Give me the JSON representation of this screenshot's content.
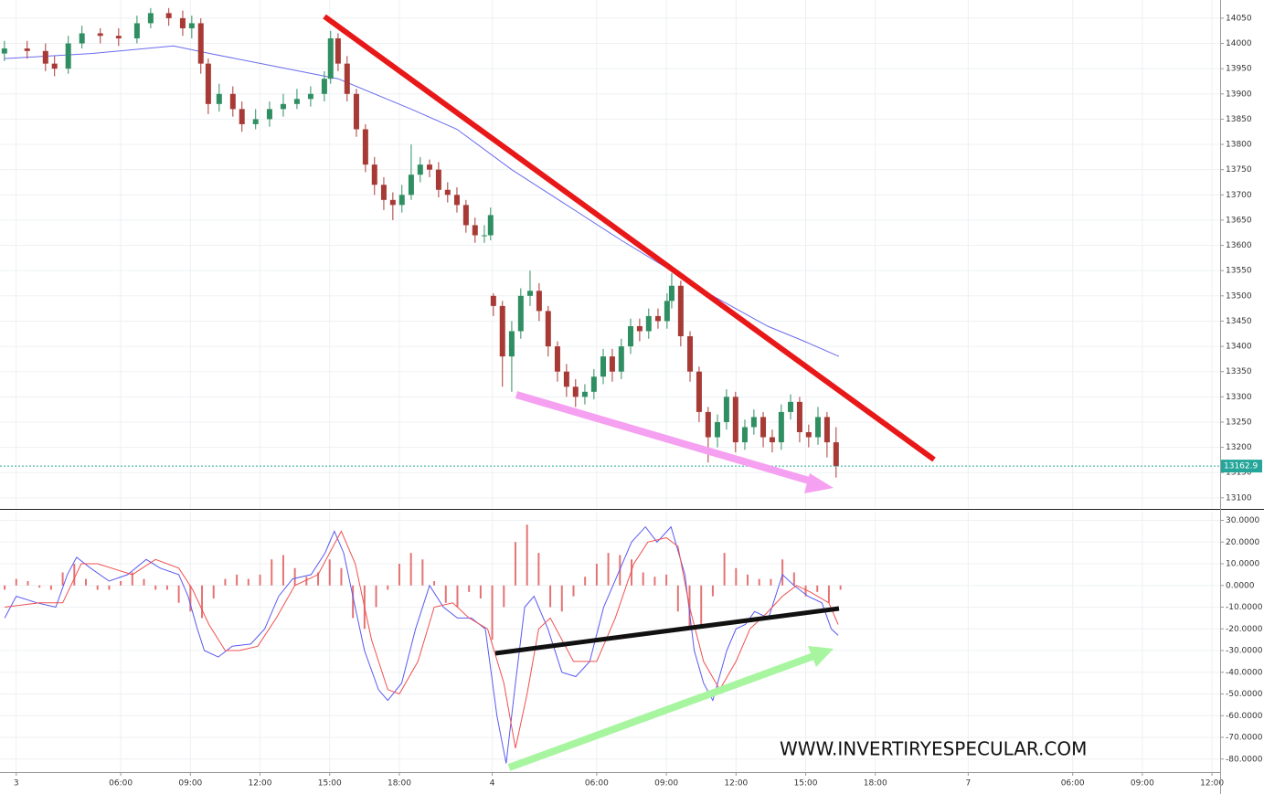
{
  "chart_data": [
    {
      "type": "candlestick",
      "x": [
        -0.51,
        0.47,
        1.26,
        1.65,
        2.24,
        2.83,
        3.62,
        4.41,
        5.2,
        5.79,
        6.57,
        7.17,
        7.56,
        7.95,
        8.27,
        8.74,
        9.33,
        9.72,
        10.31,
        10.91,
        11.5,
        12.09,
        12.68,
        13.27,
        13.54,
        13.86,
        14.25,
        14.65,
        15.04,
        15.43,
        15.83,
        16.22,
        16.61,
        17.01,
        17.4,
        17.8,
        18.19,
        18.58,
        18.98,
        19.37,
        19.76,
        20.16,
        20.43,
        20.55,
        20.94,
        21.34,
        21.73,
        22.13,
        22.52,
        22.91,
        23.31,
        23.7,
        24.09,
        24.49,
        24.88,
        25.28,
        25.67,
        26.06,
        26.46,
        26.85,
        27.24,
        27.64,
        28.03,
        28.23,
        28.62,
        29.02,
        29.41,
        29.8,
        30.2,
        30.59,
        30.98,
        31.38,
        31.77,
        32.17,
        32.56,
        32.95,
        33.35,
        33.74,
        34.13,
        34.53,
        34.92,
        35.31
      ],
      "ohlc": [
        [
          13980,
          14005,
          13965,
          13990
        ],
        [
          13990,
          14005,
          13970,
          13985
        ],
        [
          13985,
          14000,
          13945,
          13960
        ],
        [
          13960,
          13975,
          13935,
          13950
        ],
        [
          13950,
          14015,
          13940,
          14000
        ],
        [
          14000,
          14035,
          13990,
          14020
        ],
        [
          14020,
          14030,
          14000,
          14015
        ],
        [
          14015,
          14030,
          13995,
          14010
        ],
        [
          14010,
          14055,
          14000,
          14040
        ],
        [
          14040,
          14070,
          14030,
          14060
        ],
        [
          14060,
          14070,
          14035,
          14050
        ],
        [
          14050,
          14065,
          14015,
          14030
        ],
        [
          14030,
          14055,
          14010,
          14040
        ],
        [
          14040,
          14050,
          13940,
          13960
        ],
        [
          13960,
          13970,
          13860,
          13880
        ],
        [
          13880,
          13920,
          13865,
          13900
        ],
        [
          13900,
          13915,
          13855,
          13870
        ],
        [
          13870,
          13885,
          13825,
          13840
        ],
        [
          13840,
          13870,
          13830,
          13850
        ],
        [
          13850,
          13885,
          13835,
          13870
        ],
        [
          13870,
          13900,
          13855,
          13880
        ],
        [
          13880,
          13910,
          13870,
          13890
        ],
        [
          13890,
          13915,
          13875,
          13900
        ],
        [
          13900,
          13945,
          13885,
          13930
        ],
        [
          13930,
          14025,
          13920,
          14010
        ],
        [
          14010,
          14020,
          13945,
          13960
        ],
        [
          13960,
          13975,
          13885,
          13900
        ],
        [
          13900,
          13910,
          13815,
          13830
        ],
        [
          13830,
          13840,
          13745,
          13760
        ],
        [
          13760,
          13775,
          13700,
          13720
        ],
        [
          13720,
          13735,
          13670,
          13690
        ],
        [
          13690,
          13705,
          13650,
          13680
        ],
        [
          13680,
          13720,
          13665,
          13700
        ],
        [
          13700,
          13800,
          13690,
          13740
        ],
        [
          13740,
          13775,
          13725,
          13760
        ],
        [
          13760,
          13770,
          13735,
          13750
        ],
        [
          13750,
          13765,
          13695,
          13710
        ],
        [
          13710,
          13725,
          13685,
          13700
        ],
        [
          13700,
          13715,
          13665,
          13680
        ],
        [
          13680,
          13690,
          13625,
          13640
        ],
        [
          13640,
          13655,
          13605,
          13620
        ],
        [
          13620,
          13640,
          13605,
          13620
        ],
        [
          13620,
          13675,
          13610,
          13660
        ],
        [
          13500,
          13505,
          13460,
          13480
        ],
        [
          13480,
          13490,
          13320,
          13380
        ],
        [
          13380,
          13450,
          13310,
          13430
        ],
        [
          13430,
          13515,
          13415,
          13500
        ],
        [
          13500,
          13550,
          13480,
          13510
        ],
        [
          13510,
          13525,
          13450,
          13470
        ],
        [
          13470,
          13480,
          13380,
          13400
        ],
        [
          13400,
          13410,
          13330,
          13350
        ],
        [
          13350,
          13365,
          13300,
          13320
        ],
        [
          13320,
          13335,
          13280,
          13300
        ],
        [
          13300,
          13325,
          13285,
          13310
        ],
        [
          13310,
          13355,
          13295,
          13340
        ],
        [
          13340,
          13395,
          13325,
          13380
        ],
        [
          13380,
          13395,
          13330,
          13350
        ],
        [
          13350,
          13415,
          13335,
          13400
        ],
        [
          13400,
          13455,
          13385,
          13440
        ],
        [
          13440,
          13455,
          13410,
          13430
        ],
        [
          13430,
          13475,
          13415,
          13460
        ],
        [
          13460,
          13475,
          13435,
          13450
        ],
        [
          13450,
          13505,
          13435,
          13490
        ],
        [
          13490,
          13545,
          13475,
          13520
        ],
        [
          13520,
          13530,
          13400,
          13420
        ],
        [
          13420,
          13430,
          13330,
          13350
        ],
        [
          13350,
          13360,
          13250,
          13270
        ],
        [
          13270,
          13280,
          13170,
          13220
        ],
        [
          13220,
          13265,
          13200,
          13250
        ],
        [
          13250,
          13315,
          13235,
          13300
        ],
        [
          13300,
          13310,
          13190,
          13210
        ],
        [
          13210,
          13255,
          13195,
          13240
        ],
        [
          13240,
          13275,
          13225,
          13260
        ],
        [
          13260,
          13270,
          13200,
          13220
        ],
        [
          13220,
          13235,
          13190,
          13210
        ],
        [
          13210,
          13285,
          13195,
          13270
        ],
        [
          13270,
          13305,
          13255,
          13290
        ],
        [
          13290,
          13300,
          13210,
          13230
        ],
        [
          13230,
          13245,
          13200,
          13220
        ],
        [
          13220,
          13280,
          13205,
          13260
        ],
        [
          13260,
          13270,
          13180,
          13210
        ],
        [
          13210,
          13240,
          13140,
          13162.9
        ]
      ],
      "up_color": "#2f8f62",
      "down_color": "#a83a36",
      "series": [
        {
          "color": "#6b6bef",
          "x": [
            -0.51,
            3.23,
            6.77,
            8.35,
            11.1,
            13.86,
            17.01,
            18.98,
            21.34,
            23.7,
            26.06,
            28.03,
            30.0,
            32.36,
            33.94,
            35.43
          ],
          "values": [
            13970,
            13980,
            13995,
            13980,
            13955,
            13930,
            13870,
            13830,
            13750,
            13680,
            13610,
            13555,
            13500,
            13440,
            13410,
            13380
          ]
        }
      ],
      "last_price": 13162.9,
      "last_color": "#26a69a",
      "xlim": [
        -0.7,
        51.85
      ],
      "ylim": [
        13078,
        14086
      ],
      "yticks": [
        13100,
        13150,
        13200,
        13250,
        13300,
        13350,
        13400,
        13450,
        13500,
        13550,
        13600,
        13650,
        13700,
        13750,
        13800,
        13850,
        13900,
        13950,
        14000,
        14050
      ],
      "xticks": [
        {
          "value": 0,
          "label": "3"
        },
        {
          "value": 4.5,
          "label": "06:00"
        },
        {
          "value": 7.5,
          "label": "09:00"
        },
        {
          "value": 10.5,
          "label": "12:00"
        },
        {
          "value": 13.5,
          "label": "15:00"
        },
        {
          "value": 16.5,
          "label": "18:00"
        },
        {
          "value": 20.5,
          "label": "4"
        },
        {
          "value": 25,
          "label": "06:00"
        },
        {
          "value": 28,
          "label": "09:00"
        },
        {
          "value": 31,
          "label": "12:00"
        },
        {
          "value": 34,
          "label": "15:00"
        },
        {
          "value": 37,
          "label": "18:00"
        },
        {
          "value": 41,
          "label": "7"
        },
        {
          "value": 45.5,
          "label": "06:00"
        },
        {
          "value": 48.5,
          "label": "09:00"
        },
        {
          "value": 51.5,
          "label": "12:00"
        }
      ],
      "grid": true
    },
    {
      "type": "macd",
      "histogram": {
        "color": "#e57373",
        "x": [
          -0.5,
          0,
          0.5,
          1,
          1.5,
          2,
          2.5,
          3,
          3.5,
          4,
          4.5,
          5,
          5.5,
          6,
          6.5,
          7,
          7.5,
          8,
          8.5,
          9,
          9.5,
          10,
          10.5,
          11,
          11.5,
          12,
          12.5,
          13,
          13.5,
          14,
          14.5,
          15,
          15.5,
          16,
          16.5,
          17,
          17.5,
          18,
          18.5,
          19,
          19.5,
          20,
          20.5,
          21,
          21.5,
          22,
          22.5,
          23,
          23.5,
          24,
          24.5,
          25,
          25.5,
          26,
          26.5,
          27,
          27.5,
          28,
          28.5,
          29,
          29.5,
          30,
          30.5,
          31,
          31.5,
          32,
          32.5,
          33,
          33.5,
          34,
          34.5,
          35,
          35.5
        ],
        "values": [
          -2,
          3,
          2,
          -1,
          -2,
          6,
          10,
          3,
          -2,
          -2,
          2,
          6,
          3,
          -2,
          -2,
          -8,
          -12,
          -15,
          -6,
          3,
          5,
          3,
          5,
          12,
          14,
          8,
          4,
          6,
          12,
          8,
          -15,
          -20,
          -10,
          -2,
          10,
          15,
          12,
          2,
          -8,
          -10,
          -3,
          -6,
          -25,
          -10,
          20,
          28,
          15,
          -10,
          -12,
          -5,
          4,
          10,
          15,
          14,
          12,
          6,
          4,
          5,
          -12,
          -20,
          -18,
          -5,
          15,
          8,
          5,
          3,
          3,
          12,
          6,
          -5,
          -3,
          -8,
          -2
        ]
      },
      "series": [
        {
          "color": "#5a5af0",
          "x": [
            -0.5,
            0,
            0.9,
            1.7,
            2.2,
            2.6,
            3.2,
            4,
            4.8,
            5.6,
            6.2,
            7,
            7.4,
            7.8,
            8.1,
            8.7,
            9.3,
            10.1,
            10.7,
            11.3,
            11.9,
            12.7,
            13.3,
            13.7,
            14.1,
            14.5,
            15,
            15.6,
            16,
            16.6,
            17.2,
            17.8,
            18.4,
            19,
            19.6,
            20.2,
            20.7,
            21.1,
            21.5,
            21.9,
            22.3,
            22.9,
            23.5,
            24.1,
            24.7,
            25.3,
            25.9,
            26.5,
            27.1,
            27.6,
            28.2,
            28.8,
            29.2,
            29.6,
            30,
            30.6,
            31,
            31.4,
            31.8,
            32.4,
            33,
            33.5,
            34.1,
            34.7,
            35.1,
            35.4
          ],
          "values": [
            -15,
            -5,
            -8,
            -10,
            5,
            13,
            8,
            2,
            5,
            12,
            8,
            5,
            -5,
            -20,
            -30,
            -33,
            -28,
            -27,
            -20,
            -5,
            3,
            5,
            15,
            25,
            15,
            -5,
            -30,
            -48,
            -53,
            -45,
            -20,
            0,
            -10,
            -15,
            -15,
            -20,
            -60,
            -82,
            -45,
            -10,
            -5,
            -20,
            -40,
            -42,
            -35,
            -10,
            5,
            20,
            27,
            20,
            27,
            5,
            -30,
            -45,
            -53,
            -30,
            -20,
            -18,
            -12,
            -15,
            5,
            0,
            -5,
            -8,
            -20,
            -23
          ]
        },
        {
          "color": "#f05050",
          "x": [
            -0.5,
            1,
            2,
            2.8,
            3.5,
            5,
            6,
            7,
            7.6,
            8.3,
            9,
            9.6,
            10.4,
            11.2,
            12,
            13,
            14,
            14.6,
            15.3,
            16,
            16.5,
            17.3,
            18,
            18.8,
            19.5,
            20.3,
            21,
            21.5,
            22,
            22.5,
            23,
            24,
            25,
            25.8,
            26.6,
            27.2,
            28,
            28.5,
            29,
            29.6,
            30.3,
            31,
            31.6,
            32.3,
            33,
            33.6,
            34.2,
            35,
            35.4
          ],
          "values": [
            -10,
            -8,
            -8,
            10,
            10,
            5,
            12,
            8,
            -2,
            -18,
            -30,
            -30,
            -28,
            -15,
            0,
            5,
            25,
            10,
            -25,
            -48,
            -50,
            -35,
            -10,
            -8,
            -15,
            -20,
            -45,
            -75,
            -50,
            -20,
            -15,
            -35,
            -35,
            -15,
            10,
            20,
            22,
            18,
            -10,
            -35,
            -48,
            -35,
            -20,
            -13,
            -5,
            0,
            -3,
            -8,
            -18
          ]
        }
      ],
      "xlim": [
        -0.7,
        51.85
      ],
      "ylim": [
        -86,
        34
      ],
      "yticks": [
        {
          "value": 30,
          "label": "30.0000"
        },
        {
          "value": 20,
          "label": "20.0000"
        },
        {
          "value": 10,
          "label": "10.0000"
        },
        {
          "value": 0,
          "label": "0.0000"
        },
        {
          "value": -10,
          "label": "-10.0000"
        },
        {
          "value": -20,
          "label": "-20.0000"
        },
        {
          "value": -30,
          "label": "-30.0000"
        },
        {
          "value": -40,
          "label": "-40.0000"
        },
        {
          "value": -50,
          "label": "-50.0000"
        },
        {
          "value": -60,
          "label": "-60.0000"
        },
        {
          "value": -70,
          "label": "-70.0000"
        },
        {
          "value": -80,
          "label": "-80.0000"
        }
      ],
      "grid": true
    }
  ],
  "watermark": "WWW.INVERTIRYESPECULAR.COM"
}
